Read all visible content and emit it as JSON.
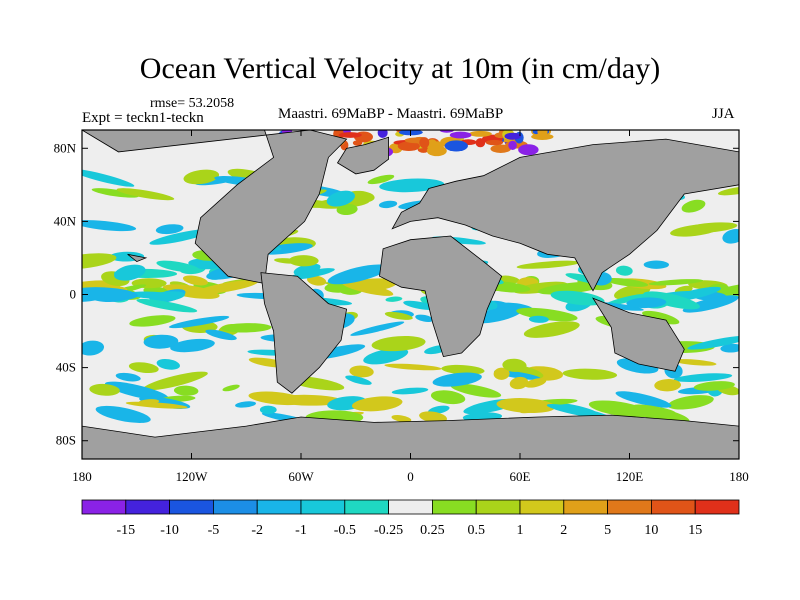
{
  "chart_data": {
    "type": "heatmap",
    "title": "Ocean Vertical Velocity at 10m (in cm/day)",
    "rmse_text": "rmse= 53.2058",
    "expt_text": "Expt = teckn1-teckn",
    "comparison_text": "Maastri.  69MaBP - Maastri.  69MaBP",
    "season": "JJA",
    "x_ticks": [
      -180,
      -120,
      -60,
      0,
      60,
      120,
      180
    ],
    "x_tick_labels": [
      "180",
      "120W",
      "60W",
      "0",
      "60E",
      "120E",
      "180"
    ],
    "y_ticks": [
      80,
      40,
      0,
      -40,
      -80
    ],
    "y_tick_labels": [
      "80N",
      "40N",
      "0",
      "40S",
      "80S"
    ],
    "xlim": [
      -180,
      180
    ],
    "ylim": [
      -90,
      90
    ],
    "colorbar": {
      "levels": [
        "-15",
        "-10",
        "-5",
        "-2",
        "-1",
        "-0.5",
        "-0.25",
        "0.25",
        "0.5",
        "1",
        "2",
        "5",
        "10",
        "15"
      ],
      "colors": [
        "#8a22e6",
        "#4422dd",
        "#1a55e0",
        "#1c8ee6",
        "#19b5e8",
        "#18c8da",
        "#1fd8c2",
        "#eeeeee",
        "#88dd22",
        "#aad41a",
        "#d2c81c",
        "#e0a019",
        "#e0781a",
        "#e05418",
        "#e0301a"
      ]
    },
    "land_color": "#a0a0a0",
    "ocean_neutral_color": "#eeeeee"
  }
}
